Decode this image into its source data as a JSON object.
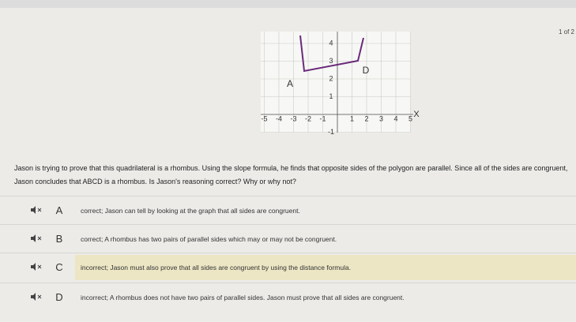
{
  "page_indicator": "1 of 2",
  "graph": {
    "x_tick_labels": [
      -5,
      -4,
      -3,
      -2,
      -1,
      1,
      2,
      3,
      4,
      5
    ],
    "y_tick_labels": [
      4,
      3,
      2,
      1,
      -1
    ],
    "x_axis_label": "X",
    "point_labels": [
      "A",
      "D"
    ]
  },
  "question": "Jason is trying to prove that this quadrilateral is a rhombus. Using the slope formula, he finds that opposite sides of the polygon are parallel. Since all of the sides are congruent, Jason concludes that ABCD is a rhombus. Is Jason's reasoning correct? Why or why not?",
  "options": [
    {
      "letter": "A",
      "text": "correct; Jason can tell by looking at the graph that all sides are congruent."
    },
    {
      "letter": "B",
      "text": "correct; A rhombus has two pairs of parallel sides which may or may not be congruent."
    },
    {
      "letter": "C",
      "text": "incorrect; Jason must also prove that all sides are congruent by using the distance formula."
    },
    {
      "letter": "D",
      "text": "incorrect; A rhombus does not have two pairs of parallel sides. Jason must prove that all sides are congruent."
    }
  ]
}
